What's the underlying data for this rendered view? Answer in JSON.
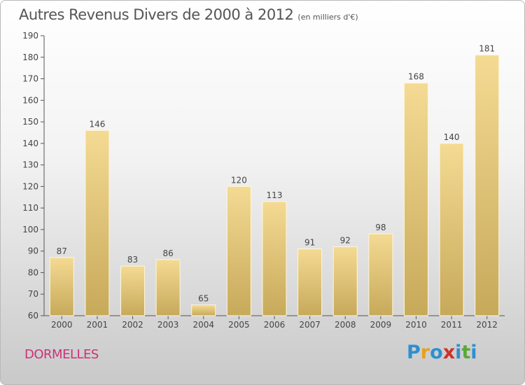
{
  "header": {
    "title": "Autres Revenus Divers de 2000 à 2012",
    "subtitle": "(en milliers d'€)"
  },
  "footer": {
    "commune": "DORMELLES",
    "logo_text": "Proxiti"
  },
  "colors": {
    "bar_top": "#f4da93",
    "bar_bottom": "#c7a95a",
    "commune_text": "#cc3377"
  },
  "chart_data": {
    "type": "bar",
    "title": "Autres Revenus Divers de 2000 à 2012",
    "subtitle": "(en milliers d'€)",
    "xlabel": "",
    "ylabel": "",
    "categories": [
      "2000",
      "2001",
      "2002",
      "2003",
      "2004",
      "2005",
      "2006",
      "2007",
      "2008",
      "2009",
      "2010",
      "2011",
      "2012"
    ],
    "values": [
      87,
      146,
      83,
      86,
      65,
      120,
      113,
      91,
      92,
      98,
      168,
      140,
      181
    ],
    "ylim": [
      60,
      190
    ],
    "yticks": [
      60,
      70,
      80,
      90,
      100,
      110,
      120,
      130,
      140,
      150,
      160,
      170,
      180,
      190
    ],
    "grid": false,
    "legend": "none"
  }
}
